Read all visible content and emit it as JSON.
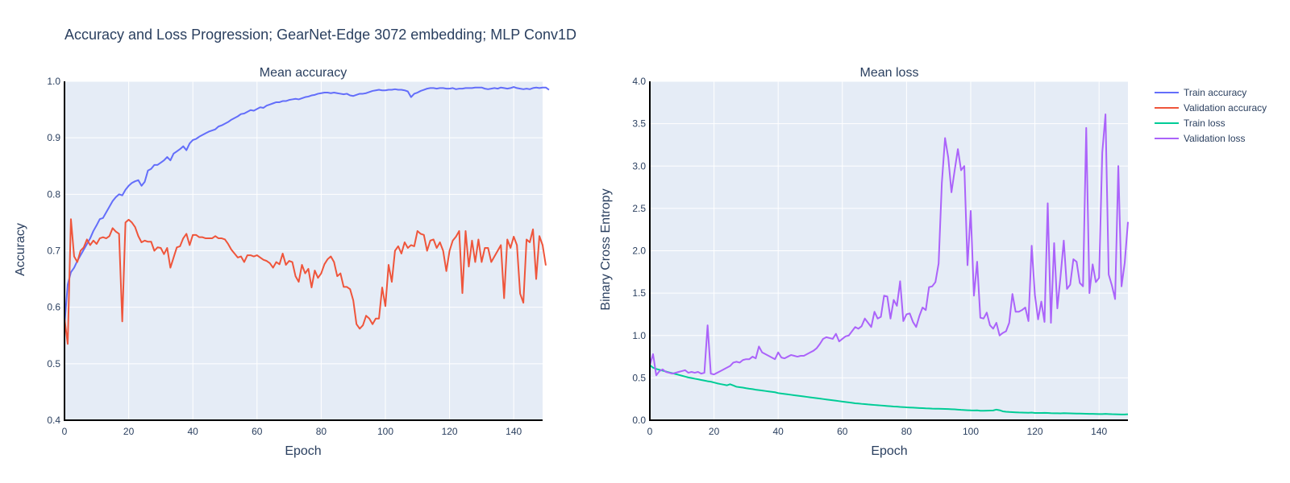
{
  "title": "Accuracy and Loss Progression; GearNet-Edge 3072 embedding; MLP Conv1D",
  "colors": {
    "train_accuracy": "#636efa",
    "validation_accuracy": "#ef553b",
    "train_loss": "#00cc96",
    "validation_loss": "#ab63fa",
    "plot_bg": "#e5ecf6",
    "grid": "#ffffff",
    "text": "#2a3f5f"
  },
  "legend": {
    "placement": "top-right",
    "items": [
      "Train accuracy",
      "Validation accuracy",
      "Train loss",
      "Validation loss"
    ]
  },
  "chart_data": [
    {
      "type": "line",
      "title": "Mean accuracy",
      "xlabel": "Epoch",
      "ylabel": "Accuracy",
      "xlim": [
        0,
        149
      ],
      "ylim": [
        0.4,
        1.0
      ],
      "xticks": [
        "0",
        "20",
        "40",
        "60",
        "80",
        "100",
        "120",
        "140"
      ],
      "yticks": [
        "0.4",
        "0.5",
        "0.6",
        "0.7",
        "0.8",
        "0.9",
        "1.0"
      ],
      "grid": true,
      "series": [
        {
          "name": "Train accuracy",
          "color": "#636efa",
          "values": [
            0.57,
            0.64,
            0.662,
            0.67,
            0.682,
            0.692,
            0.702,
            0.712,
            0.722,
            0.735,
            0.745,
            0.756,
            0.758,
            0.768,
            0.778,
            0.788,
            0.795,
            0.8,
            0.798,
            0.808,
            0.815,
            0.82,
            0.823,
            0.825,
            0.815,
            0.822,
            0.842,
            0.845,
            0.852,
            0.852,
            0.856,
            0.86,
            0.866,
            0.86,
            0.872,
            0.876,
            0.88,
            0.885,
            0.878,
            0.89,
            0.896,
            0.898,
            0.902,
            0.905,
            0.908,
            0.911,
            0.913,
            0.915,
            0.92,
            0.922,
            0.925,
            0.928,
            0.932,
            0.935,
            0.938,
            0.942,
            0.943,
            0.946,
            0.949,
            0.948,
            0.951,
            0.954,
            0.953,
            0.957,
            0.959,
            0.961,
            0.963,
            0.963,
            0.965,
            0.965,
            0.967,
            0.968,
            0.969,
            0.968,
            0.97,
            0.972,
            0.973,
            0.975,
            0.976,
            0.978,
            0.979,
            0.98,
            0.98,
            0.979,
            0.98,
            0.979,
            0.978,
            0.977,
            0.978,
            0.975,
            0.974,
            0.976,
            0.978,
            0.978,
            0.979,
            0.981,
            0.983,
            0.984,
            0.985,
            0.984,
            0.984,
            0.985,
            0.985,
            0.986,
            0.985,
            0.985,
            0.984,
            0.982,
            0.972,
            0.978,
            0.98,
            0.983,
            0.985,
            0.987,
            0.988,
            0.988,
            0.987,
            0.988,
            0.988,
            0.987,
            0.987,
            0.988,
            0.986,
            0.987,
            0.987,
            0.988,
            0.988,
            0.988,
            0.989,
            0.989,
            0.989,
            0.987,
            0.986,
            0.987,
            0.988,
            0.987,
            0.989,
            0.988,
            0.987,
            0.988,
            0.99,
            0.988,
            0.987,
            0.986,
            0.987,
            0.986,
            0.988,
            0.989,
            0.988,
            0.989,
            0.989,
            0.985
          ]
        },
        {
          "name": "Validation accuracy",
          "color": "#ef553b",
          "values": [
            0.58,
            0.535,
            0.756,
            0.69,
            0.68,
            0.7,
            0.706,
            0.72,
            0.71,
            0.718,
            0.712,
            0.722,
            0.724,
            0.722,
            0.726,
            0.74,
            0.734,
            0.73,
            0.575,
            0.75,
            0.755,
            0.75,
            0.742,
            0.726,
            0.715,
            0.718,
            0.716,
            0.716,
            0.7,
            0.706,
            0.705,
            0.694,
            0.705,
            0.67,
            0.688,
            0.706,
            0.708,
            0.722,
            0.73,
            0.71,
            0.728,
            0.728,
            0.724,
            0.724,
            0.722,
            0.722,
            0.722,
            0.726,
            0.722,
            0.722,
            0.72,
            0.712,
            0.702,
            0.695,
            0.688,
            0.69,
            0.68,
            0.692,
            0.692,
            0.69,
            0.692,
            0.688,
            0.684,
            0.682,
            0.678,
            0.67,
            0.68,
            0.676,
            0.695,
            0.675,
            0.682,
            0.68,
            0.655,
            0.645,
            0.675,
            0.66,
            0.668,
            0.635,
            0.665,
            0.652,
            0.66,
            0.676,
            0.685,
            0.69,
            0.68,
            0.655,
            0.66,
            0.636,
            0.636,
            0.632,
            0.612,
            0.57,
            0.562,
            0.568,
            0.585,
            0.58,
            0.57,
            0.58,
            0.58,
            0.635,
            0.602,
            0.675,
            0.645,
            0.7,
            0.708,
            0.695,
            0.715,
            0.705,
            0.71,
            0.708,
            0.735,
            0.73,
            0.728,
            0.7,
            0.718,
            0.72,
            0.705,
            0.715,
            0.7,
            0.664,
            0.7,
            0.718,
            0.725,
            0.735,
            0.625,
            0.735,
            0.672,
            0.718,
            0.68,
            0.72,
            0.68,
            0.705,
            0.705,
            0.68,
            0.69,
            0.7,
            0.71,
            0.616,
            0.72,
            0.705,
            0.725,
            0.71,
            0.624,
            0.608,
            0.72,
            0.715,
            0.738,
            0.65,
            0.726,
            0.71,
            0.674
          ]
        }
      ]
    },
    {
      "type": "line",
      "title": "Mean loss",
      "xlabel": "Epoch",
      "ylabel": "Binary Cross Entropy",
      "xlim": [
        0,
        149
      ],
      "ylim": [
        0,
        4.0
      ],
      "xticks": [
        "0",
        "20",
        "40",
        "60",
        "80",
        "100",
        "120",
        "140"
      ],
      "yticks": [
        "0.0",
        "0.5",
        "1.0",
        "1.5",
        "2.0",
        "2.5",
        "3.0",
        "3.5",
        "4.0"
      ],
      "grid": true,
      "series": [
        {
          "name": "Train loss",
          "color": "#00cc96",
          "values": [
            0.65,
            0.62,
            0.605,
            0.595,
            0.585,
            0.575,
            0.565,
            0.555,
            0.545,
            0.535,
            0.525,
            0.515,
            0.505,
            0.498,
            0.49,
            0.483,
            0.475,
            0.468,
            0.46,
            0.455,
            0.445,
            0.435,
            0.427,
            0.42,
            0.412,
            0.425,
            0.41,
            0.395,
            0.39,
            0.385,
            0.378,
            0.372,
            0.367,
            0.36,
            0.355,
            0.35,
            0.345,
            0.34,
            0.335,
            0.33,
            0.32,
            0.315,
            0.31,
            0.305,
            0.3,
            0.295,
            0.29,
            0.285,
            0.28,
            0.275,
            0.27,
            0.265,
            0.26,
            0.255,
            0.25,
            0.245,
            0.24,
            0.235,
            0.23,
            0.225,
            0.22,
            0.215,
            0.21,
            0.205,
            0.2,
            0.197,
            0.193,
            0.19,
            0.186,
            0.183,
            0.18,
            0.177,
            0.174,
            0.171,
            0.168,
            0.165,
            0.162,
            0.16,
            0.157,
            0.155,
            0.152,
            0.15,
            0.148,
            0.146,
            0.144,
            0.142,
            0.14,
            0.139,
            0.137,
            0.136,
            0.135,
            0.134,
            0.133,
            0.132,
            0.13,
            0.128,
            0.125,
            0.122,
            0.12,
            0.118,
            0.116,
            0.115,
            0.116,
            0.112,
            0.112,
            0.113,
            0.114,
            0.115,
            0.125,
            0.118,
            0.105,
            0.1,
            0.097,
            0.095,
            0.093,
            0.091,
            0.09,
            0.089,
            0.088,
            0.09,
            0.086,
            0.085,
            0.086,
            0.087,
            0.085,
            0.083,
            0.082,
            0.082,
            0.081,
            0.083,
            0.082,
            0.081,
            0.08,
            0.079,
            0.078,
            0.077,
            0.076,
            0.075,
            0.075,
            0.074,
            0.073,
            0.072,
            0.075,
            0.073,
            0.071,
            0.07,
            0.069,
            0.068,
            0.068,
            0.07
          ]
        },
        {
          "name": "Validation loss",
          "color": "#ab63fa",
          "values": [
            0.65,
            0.78,
            0.53,
            0.58,
            0.6,
            0.57,
            0.56,
            0.55,
            0.56,
            0.57,
            0.58,
            0.59,
            0.56,
            0.57,
            0.56,
            0.57,
            0.55,
            0.56,
            1.12,
            0.55,
            0.54,
            0.56,
            0.58,
            0.6,
            0.62,
            0.64,
            0.68,
            0.69,
            0.68,
            0.71,
            0.72,
            0.72,
            0.75,
            0.73,
            0.87,
            0.8,
            0.78,
            0.76,
            0.74,
            0.72,
            0.8,
            0.74,
            0.73,
            0.75,
            0.77,
            0.76,
            0.75,
            0.76,
            0.76,
            0.78,
            0.8,
            0.82,
            0.85,
            0.9,
            0.96,
            0.98,
            0.97,
            0.96,
            1.02,
            0.93,
            0.96,
            0.99,
            1.0,
            1.05,
            1.1,
            1.08,
            1.11,
            1.2,
            1.15,
            1.1,
            1.28,
            1.2,
            1.22,
            1.47,
            1.46,
            1.2,
            1.42,
            1.35,
            1.64,
            1.17,
            1.25,
            1.26,
            1.16,
            1.1,
            1.23,
            1.33,
            1.3,
            1.57,
            1.58,
            1.63,
            1.85,
            2.8,
            3.33,
            3.1,
            2.69,
            2.95,
            3.2,
            2.95,
            3.0,
            1.83,
            2.47,
            1.47,
            1.87,
            1.21,
            1.2,
            1.27,
            1.12,
            1.08,
            1.15,
            1.0,
            1.03,
            1.05,
            1.15,
            1.49,
            1.28,
            1.28,
            1.3,
            1.33,
            1.17,
            2.06,
            1.48,
            1.19,
            1.4,
            1.16,
            2.56,
            1.15,
            2.09,
            1.32,
            1.7,
            2.12,
            1.55,
            1.6,
            1.9,
            1.87,
            1.62,
            1.58,
            3.45,
            1.5,
            1.84,
            1.63,
            1.68,
            3.16,
            3.61,
            1.72,
            1.59,
            1.43,
            3.0,
            1.58,
            1.86,
            2.34
          ]
        }
      ]
    }
  ]
}
